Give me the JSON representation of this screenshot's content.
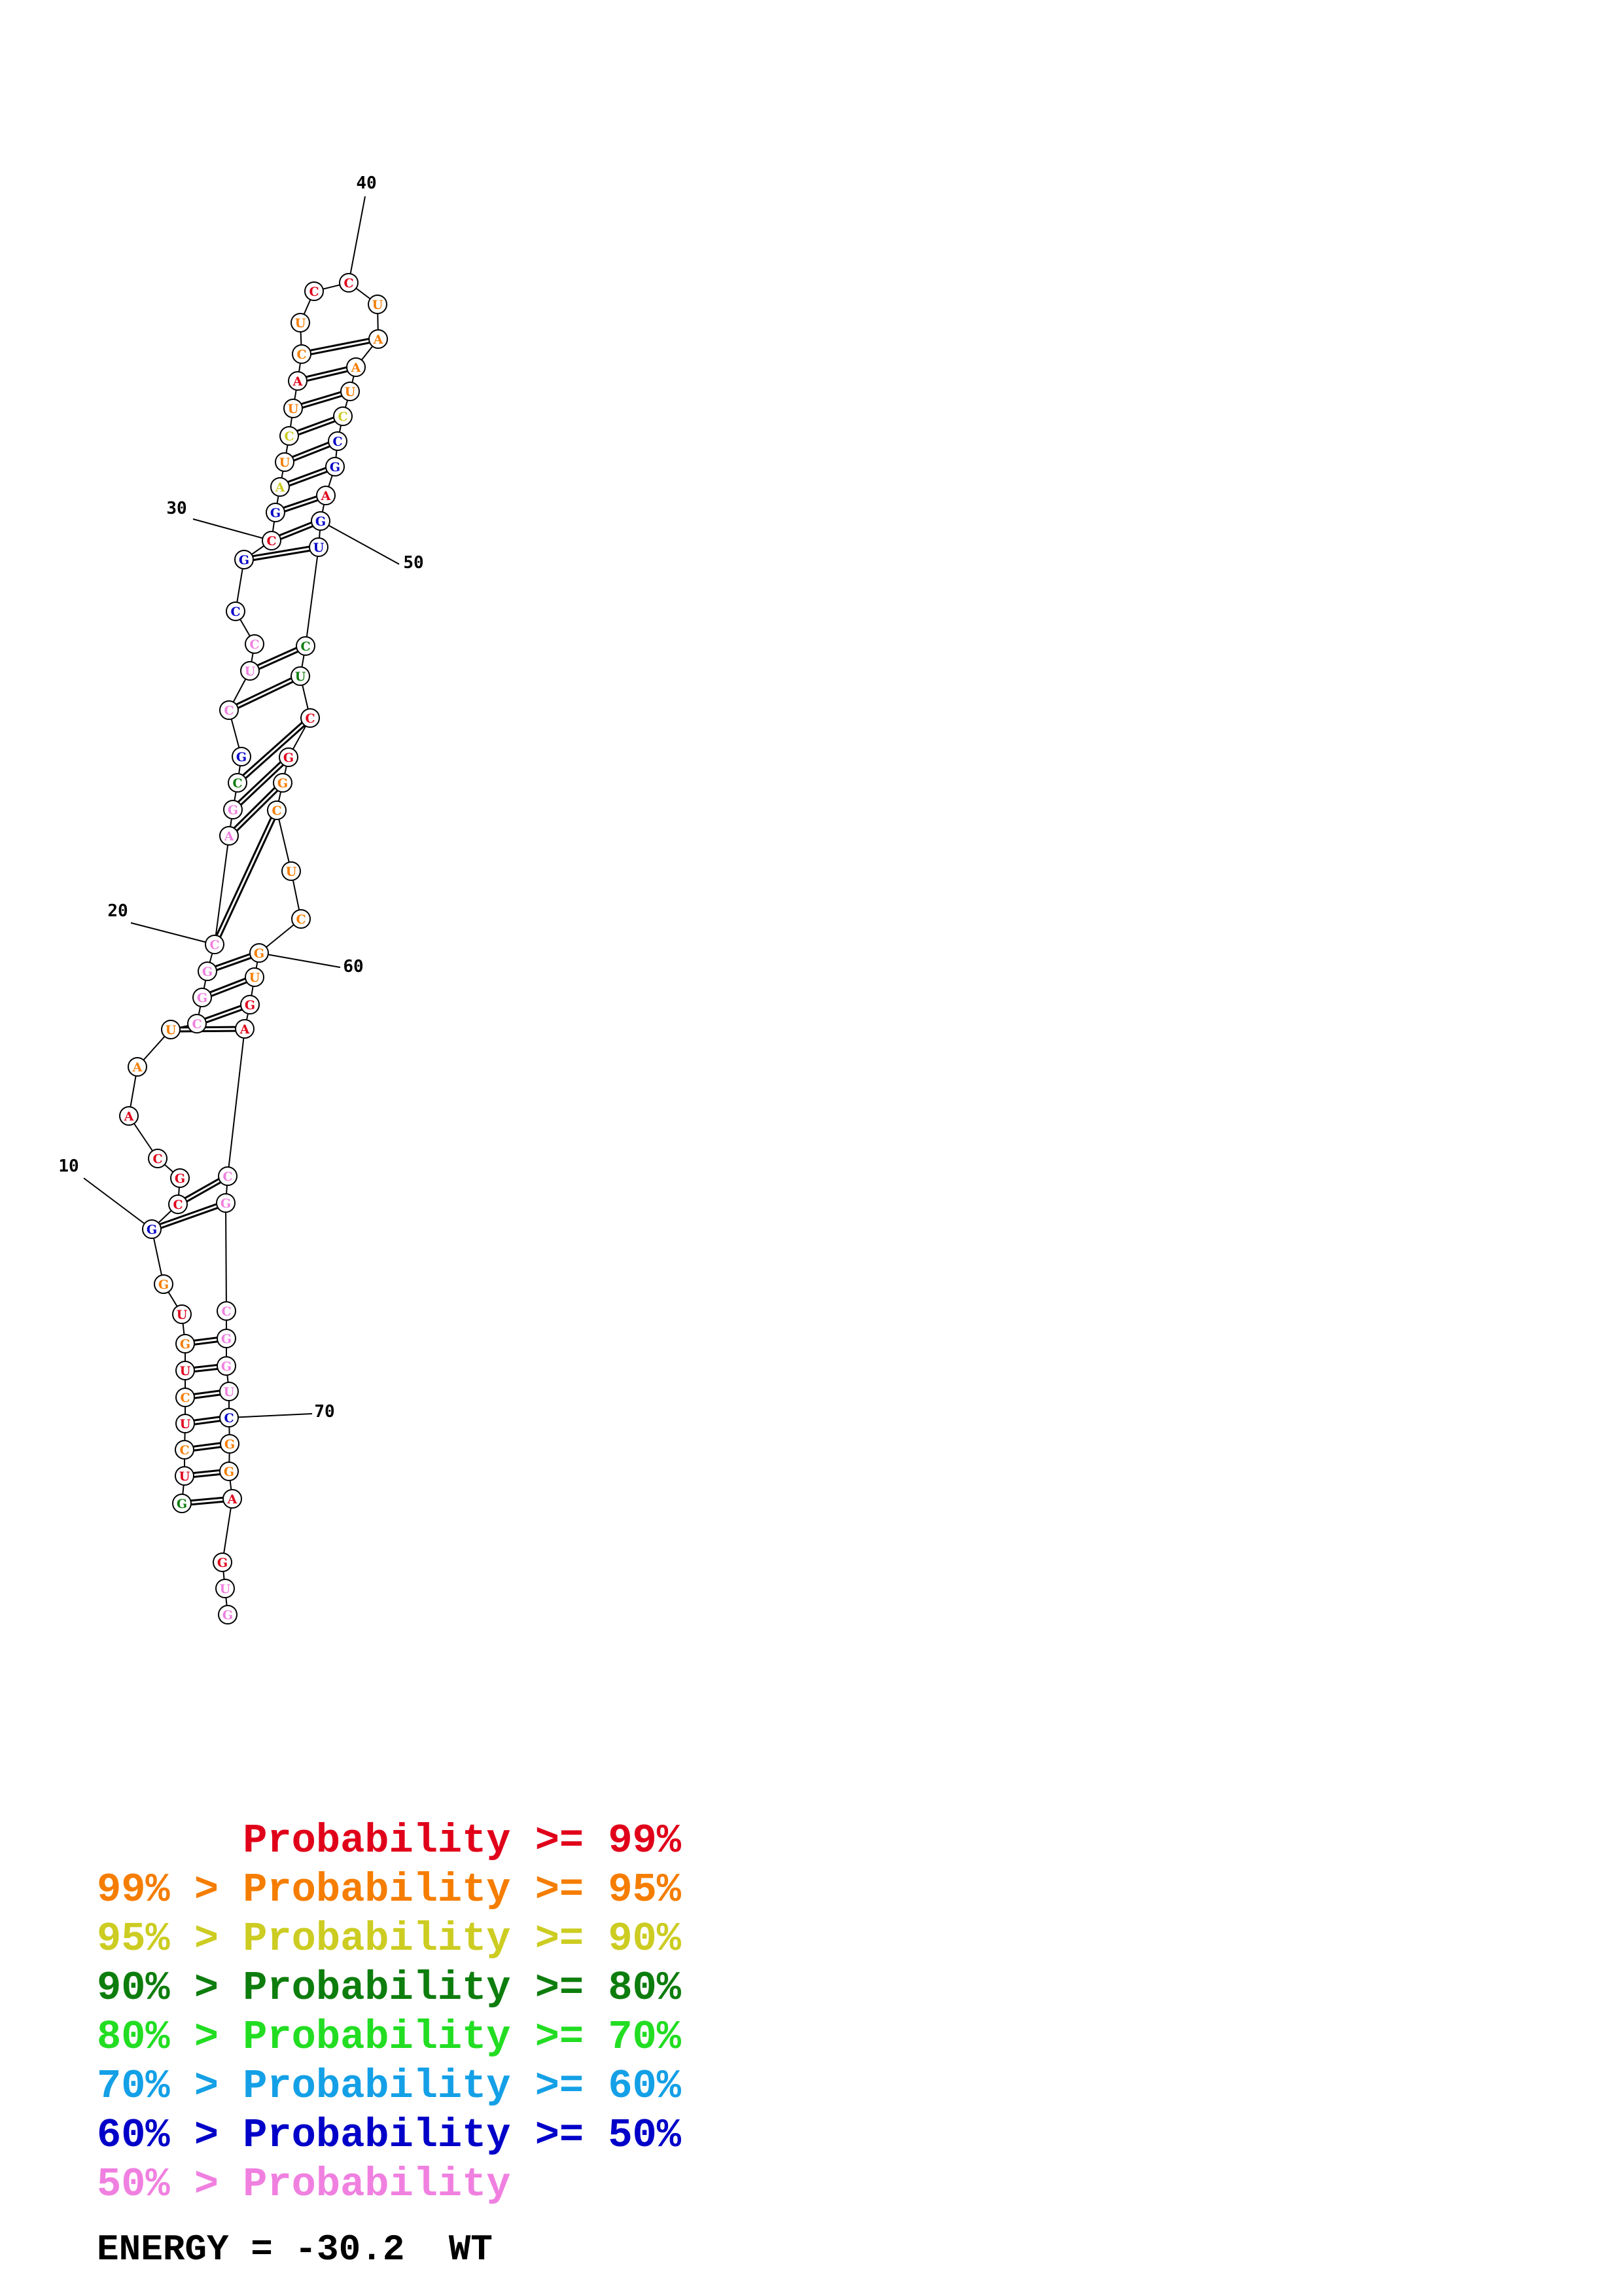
{
  "colors": {
    "p99": "#e0001a",
    "p95": "#f57d00",
    "p90": "#cccc22",
    "p80": "#0d7d0d",
    "p70": "#22dd22",
    "p60": "#14a0e6",
    "p50": "#0000c8",
    "plow": "#f080e0"
  },
  "sequence": "GUCUCUGUGGCGCAAUCGGCAGCGCUCCGCGAUCUACUCCUAAUCCGAGUCUCGGCUCGUGACGCGGUCGGAGUG",
  "position_labels": [
    "10",
    "20",
    "30",
    "40",
    "50",
    "60",
    "70"
  ],
  "legend": [
    {
      "prefix": "    ",
      "text": "Probability >= 99%",
      "color": "p99"
    },
    {
      "prefix": "99% > ",
      "text": "Probability >= 95%",
      "color": "p95"
    },
    {
      "prefix": "95% > ",
      "text": "Probability >= 90%",
      "color": "p90"
    },
    {
      "prefix": "90% > ",
      "text": "Probability >= 80%",
      "color": "p80"
    },
    {
      "prefix": "80% > ",
      "text": "Probability >= 70%",
      "color": "p70"
    },
    {
      "prefix": "70% > ",
      "text": "Probability >= 60%",
      "color": "p60"
    },
    {
      "prefix": "60% > ",
      "text": "Probability >= 50%",
      "color": "p50"
    },
    {
      "prefix": "50% > ",
      "text": "Probability",
      "color": "plow"
    }
  ],
  "energy": {
    "label": "ENERGY = -30.2",
    "name": "WT"
  }
}
